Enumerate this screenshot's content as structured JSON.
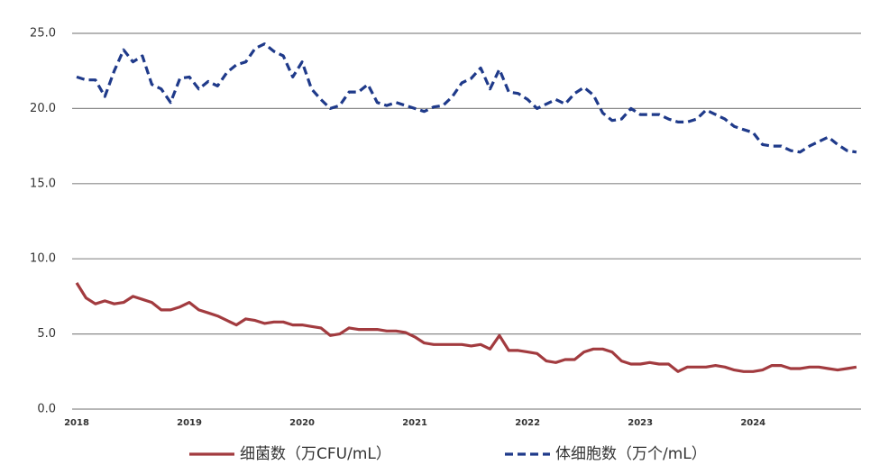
{
  "chart_data": {
    "type": "line",
    "categories": [
      "2018",
      null,
      null,
      null,
      null,
      null,
      null,
      null,
      null,
      null,
      null,
      null,
      "2019",
      null,
      null,
      null,
      null,
      null,
      null,
      null,
      null,
      null,
      null,
      null,
      "2020",
      null,
      null,
      null,
      null,
      null,
      null,
      null,
      null,
      null,
      null,
      null,
      "2021",
      null,
      null,
      null,
      null,
      null,
      null,
      null,
      null,
      null,
      null,
      null,
      "2022",
      null,
      null,
      null,
      null,
      null,
      null,
      null,
      null,
      null,
      null,
      null,
      "2023",
      null,
      null,
      null,
      null,
      null,
      null,
      null,
      null,
      null,
      null,
      null,
      "2024",
      null,
      null,
      null,
      null,
      null,
      null,
      null,
      null,
      null,
      null,
      null
    ],
    "series": [
      {
        "name": "细菌数（万CFU/mL）",
        "color": "#a23b3f",
        "line_style": "solid",
        "values": [
          8.4,
          7.4,
          7.0,
          7.2,
          7.0,
          7.1,
          7.5,
          7.3,
          7.1,
          6.6,
          6.6,
          6.8,
          7.1,
          6.6,
          6.4,
          6.2,
          5.9,
          5.6,
          6.0,
          5.9,
          5.7,
          5.8,
          5.8,
          5.6,
          5.6,
          5.5,
          5.4,
          4.9,
          5.0,
          5.4,
          5.3,
          5.3,
          5.3,
          5.2,
          5.2,
          5.1,
          4.8,
          4.4,
          4.3,
          4.3,
          4.3,
          4.3,
          4.2,
          4.3,
          4.0,
          4.9,
          3.9,
          3.9,
          3.8,
          3.7,
          3.2,
          3.1,
          3.3,
          3.3,
          3.8,
          4.0,
          4.0,
          3.8,
          3.2,
          3.0,
          3.0,
          3.1,
          3.0,
          3.0,
          2.5,
          2.8,
          2.8,
          2.8,
          2.9,
          2.8,
          2.6,
          2.5,
          2.5,
          2.6,
          2.9,
          2.9,
          2.7,
          2.7,
          2.8,
          2.8,
          2.7,
          2.6,
          2.7,
          2.8
        ]
      },
      {
        "name": "体细胞数（万个/mL）",
        "color": "#1f3a8a",
        "line_style": "dashed",
        "values": [
          22.1,
          21.9,
          21.9,
          20.8,
          22.5,
          23.9,
          23.1,
          23.5,
          21.6,
          21.3,
          20.4,
          22.0,
          22.1,
          21.3,
          21.8,
          21.5,
          22.4,
          22.9,
          23.1,
          24.0,
          24.3,
          23.8,
          23.5,
          22.1,
          23.1,
          21.3,
          20.6,
          20.0,
          20.2,
          21.1,
          21.1,
          21.6,
          20.4,
          20.2,
          20.4,
          20.2,
          20.0,
          19.8,
          20.1,
          20.2,
          20.8,
          21.7,
          22.0,
          22.7,
          21.3,
          22.6,
          21.1,
          21.0,
          20.6,
          20.0,
          20.3,
          20.6,
          20.3,
          21.0,
          21.4,
          20.9,
          19.7,
          19.2,
          19.3,
          20.0,
          19.6,
          19.6,
          19.6,
          19.3,
          19.1,
          19.1,
          19.3,
          19.9,
          19.6,
          19.3,
          18.8,
          18.6,
          18.4,
          17.6,
          17.5,
          17.5,
          17.2,
          17.1,
          17.5,
          17.8,
          18.1,
          17.6,
          17.2,
          17.1
        ]
      }
    ],
    "ylim": [
      0,
      25
    ],
    "yticks": [
      {
        "value": 0,
        "label": "0.0"
      },
      {
        "value": 5,
        "label": "5.0"
      },
      {
        "value": 10,
        "label": "10.0"
      },
      {
        "value": 15,
        "label": "15.0"
      },
      {
        "value": 20,
        "label": "20.0"
      },
      {
        "value": 25,
        "label": "25.0"
      }
    ],
    "grid": true,
    "legend": "bottom"
  }
}
